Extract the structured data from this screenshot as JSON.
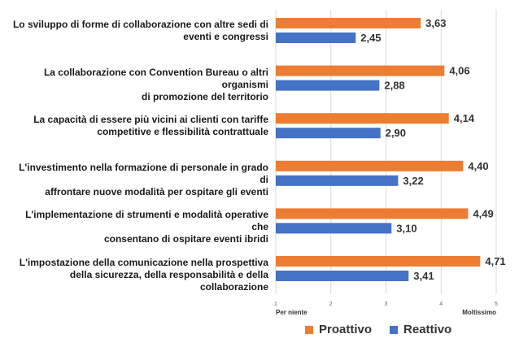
{
  "chart_data": {
    "type": "bar",
    "orientation": "horizontal",
    "categories": [
      "Lo sviluppo di forme di collaborazione con altre sedi di eventi e congressi",
      "La collaborazione con Convention Bureau o altri organismi di promozione del territorio",
      "La capacità di essere più vicini ai clienti con tariffe competitive e flessibilità contrattuale",
      "L'investimento nella formazione di personale in grado di affrontare nuove modalità per ospitare gli eventi",
      "L'implementazione di strumenti e modalità operative che consentano di ospitare eventi ibridi",
      "L'impostazione della comunicazione nella prospettiva della sicurezza, della responsabilità e della collaborazione"
    ],
    "category_lines": [
      [
        "Lo sviluppo di forme di collaborazione con altre sedi di",
        "eventi e congressi"
      ],
      [
        "La collaborazione con Convention Bureau o altri organismi",
        "di promozione del territorio"
      ],
      [
        "La capacità di essere più vicini ai clienti con tariffe",
        "competitive e flessibilità contrattuale"
      ],
      [
        "L'investimento nella formazione di personale in grado di",
        "affrontare nuove modalità per ospitare gli eventi"
      ],
      [
        "L'implementazione di strumenti e modalità operative che",
        "consentano di ospitare eventi ibridi"
      ],
      [
        "L'impostazione della comunicazione nella prospettiva",
        "della sicurezza, della responsabilità e della collaborazione"
      ]
    ],
    "series": [
      {
        "name": "Proattivo",
        "color": "#ED7D31",
        "values": [
          3.63,
          4.06,
          4.14,
          4.4,
          4.49,
          4.71
        ],
        "labels": [
          "3,63",
          "4,06",
          "4,14",
          "4,40",
          "4,49",
          "4,71"
        ]
      },
      {
        "name": "Reattivo",
        "color": "#4472C4",
        "values": [
          2.45,
          2.88,
          2.9,
          3.22,
          3.1,
          3.41
        ],
        "labels": [
          "2,45",
          "2,88",
          "2,90",
          "3,22",
          "3,10",
          "3,41"
        ]
      }
    ],
    "xlim": [
      1,
      5
    ],
    "xticks": [
      "1",
      "2",
      "3",
      "4",
      "5"
    ],
    "x_min_label": "Per niente",
    "x_max_label": "Moltissimo",
    "gridlines": true,
    "legend_position": "bottom"
  }
}
